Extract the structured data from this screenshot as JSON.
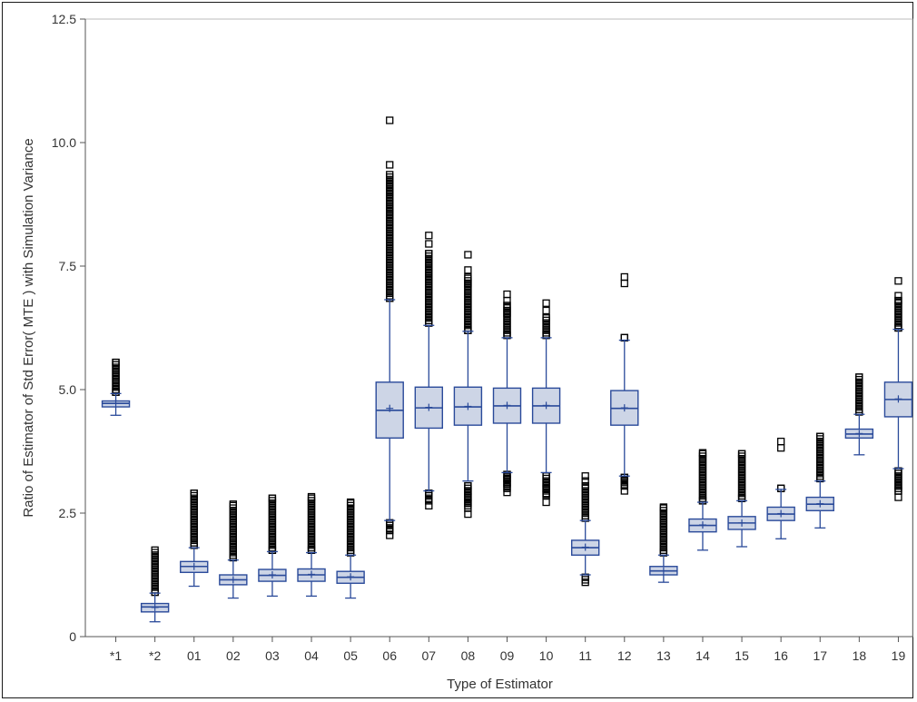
{
  "chart_data": {
    "type": "box",
    "title": "",
    "xlabel": "Type of Estimator",
    "ylabel": "Ratio of Estimator of Std Error( MTE ) with Simulation Variance",
    "ylim": [
      0,
      12.5
    ],
    "yticks": [
      "0",
      "2.5",
      "5.0",
      "7.5",
      "10.0",
      "12.5"
    ],
    "ytick_values": [
      0,
      2.5,
      5.0,
      7.5,
      10.0,
      12.5
    ],
    "grid": false,
    "legend": "none",
    "colors": {
      "box_fill": "#cdd5e6",
      "box_stroke": "#2a4a9a",
      "outlier": "#000000"
    },
    "categories": [
      "*1",
      "*2",
      "01",
      "02",
      "03",
      "04",
      "05",
      "06",
      "07",
      "08",
      "09",
      "10",
      "11",
      "12",
      "13",
      "14",
      "15",
      "16",
      "17",
      "18",
      "19"
    ],
    "boxes": [
      {
        "min": 4.48,
        "q1": 4.65,
        "median": 4.72,
        "q3": 4.77,
        "max": 4.92,
        "mean": 4.72,
        "out_high": [
          4.95,
          5.55
        ],
        "out_low": []
      },
      {
        "min": 0.3,
        "q1": 0.5,
        "median": 0.6,
        "q3": 0.67,
        "max": 0.88,
        "mean": 0.59,
        "out_high": [
          0.9,
          1.75
        ],
        "out_low": []
      },
      {
        "min": 1.02,
        "q1": 1.3,
        "median": 1.42,
        "q3": 1.52,
        "max": 1.8,
        "mean": 1.42,
        "out_high": [
          1.85,
          2.9
        ],
        "out_low": []
      },
      {
        "min": 0.78,
        "q1": 1.05,
        "median": 1.15,
        "q3": 1.25,
        "max": 1.55,
        "mean": 1.15,
        "out_high": [
          1.6,
          2.68
        ],
        "out_low": []
      },
      {
        "min": 0.82,
        "q1": 1.12,
        "median": 1.24,
        "q3": 1.36,
        "max": 1.72,
        "mean": 1.25,
        "out_high": [
          1.75,
          2.8
        ],
        "out_low": []
      },
      {
        "min": 0.82,
        "q1": 1.12,
        "median": 1.25,
        "q3": 1.37,
        "max": 1.7,
        "mean": 1.26,
        "out_high": [
          1.75,
          2.83
        ],
        "out_low": []
      },
      {
        "min": 0.78,
        "q1": 1.08,
        "median": 1.2,
        "q3": 1.32,
        "max": 1.65,
        "mean": 1.21,
        "out_high": [
          1.7,
          2.72
        ],
        "out_low": []
      },
      {
        "min": 2.35,
        "q1": 4.02,
        "median": 4.58,
        "q3": 5.15,
        "max": 6.82,
        "mean": 4.62,
        "out_high": [
          6.85,
          8.65,
          9.0,
          9.15,
          9.35,
          9.55,
          10.45
        ],
        "out_low": [
          2.05,
          2.15,
          2.25,
          2.3
        ]
      },
      {
        "min": 2.95,
        "q1": 4.22,
        "median": 4.63,
        "q3": 5.05,
        "max": 6.3,
        "mean": 4.64,
        "out_high": [
          6.35,
          7.25,
          7.55,
          7.75,
          7.95,
          8.12
        ],
        "out_low": [
          2.65,
          2.75,
          2.85,
          2.9
        ]
      },
      {
        "min": 3.15,
        "q1": 4.28,
        "median": 4.65,
        "q3": 5.05,
        "max": 6.18,
        "mean": 4.66,
        "out_high": [
          6.2,
          7.15,
          7.28,
          7.42,
          7.73
        ],
        "out_low": [
          2.48,
          2.7,
          2.82,
          2.95,
          3.05
        ]
      },
      {
        "min": 3.32,
        "q1": 4.32,
        "median": 4.67,
        "q3": 5.03,
        "max": 6.05,
        "mean": 4.68,
        "out_high": [
          6.1,
          6.55,
          6.7,
          6.8,
          6.93
        ],
        "out_low": [
          2.92,
          3.0,
          3.1,
          3.2,
          3.28
        ]
      },
      {
        "min": 3.32,
        "q1": 4.32,
        "median": 4.67,
        "q3": 5.03,
        "max": 6.05,
        "mean": 4.68,
        "out_high": [
          6.1,
          6.45,
          6.6,
          6.75
        ],
        "out_low": [
          2.72,
          2.88,
          3.0,
          3.1,
          3.25
        ]
      },
      {
        "min": 1.25,
        "q1": 1.65,
        "median": 1.8,
        "q3": 1.95,
        "max": 2.35,
        "mean": 1.81,
        "out_high": [
          2.4,
          3.05,
          3.15,
          3.25
        ],
        "out_low": [
          1.1,
          1.15,
          1.2
        ]
      },
      {
        "min": 3.25,
        "q1": 4.28,
        "median": 4.62,
        "q3": 4.98,
        "max": 6.0,
        "mean": 4.63,
        "out_high": [
          6.05,
          7.15,
          7.28
        ],
        "out_low": [
          2.95,
          3.05,
          3.15,
          3.22
        ]
      },
      {
        "min": 1.1,
        "q1": 1.25,
        "median": 1.33,
        "q3": 1.42,
        "max": 1.65,
        "mean": 1.33,
        "out_high": [
          1.7,
          2.62
        ],
        "out_low": []
      },
      {
        "min": 1.75,
        "q1": 2.12,
        "median": 2.25,
        "q3": 2.38,
        "max": 2.72,
        "mean": 2.26,
        "out_high": [
          2.75,
          3.72
        ],
        "out_low": []
      },
      {
        "min": 1.82,
        "q1": 2.17,
        "median": 2.3,
        "q3": 2.43,
        "max": 2.75,
        "mean": 2.3,
        "out_high": [
          2.8,
          3.7
        ],
        "out_low": []
      },
      {
        "min": 1.98,
        "q1": 2.35,
        "median": 2.48,
        "q3": 2.62,
        "max": 2.98,
        "mean": 2.49,
        "out_high": [
          3.0,
          3.82,
          3.95
        ],
        "out_low": []
      },
      {
        "min": 2.2,
        "q1": 2.55,
        "median": 2.68,
        "q3": 2.82,
        "max": 3.15,
        "mean": 2.69,
        "out_high": [
          3.2,
          4.05
        ],
        "out_low": []
      },
      {
        "min": 3.68,
        "q1": 4.02,
        "median": 4.1,
        "q3": 4.2,
        "max": 4.5,
        "mean": 4.11,
        "out_high": [
          4.55,
          5.25
        ],
        "out_low": []
      },
      {
        "min": 3.4,
        "q1": 4.45,
        "median": 4.8,
        "q3": 5.15,
        "max": 6.22,
        "mean": 4.81,
        "out_high": [
          6.25,
          6.8,
          6.9,
          7.2
        ],
        "out_low": [
          2.82,
          2.95,
          3.05,
          3.2,
          3.35
        ]
      }
    ]
  }
}
